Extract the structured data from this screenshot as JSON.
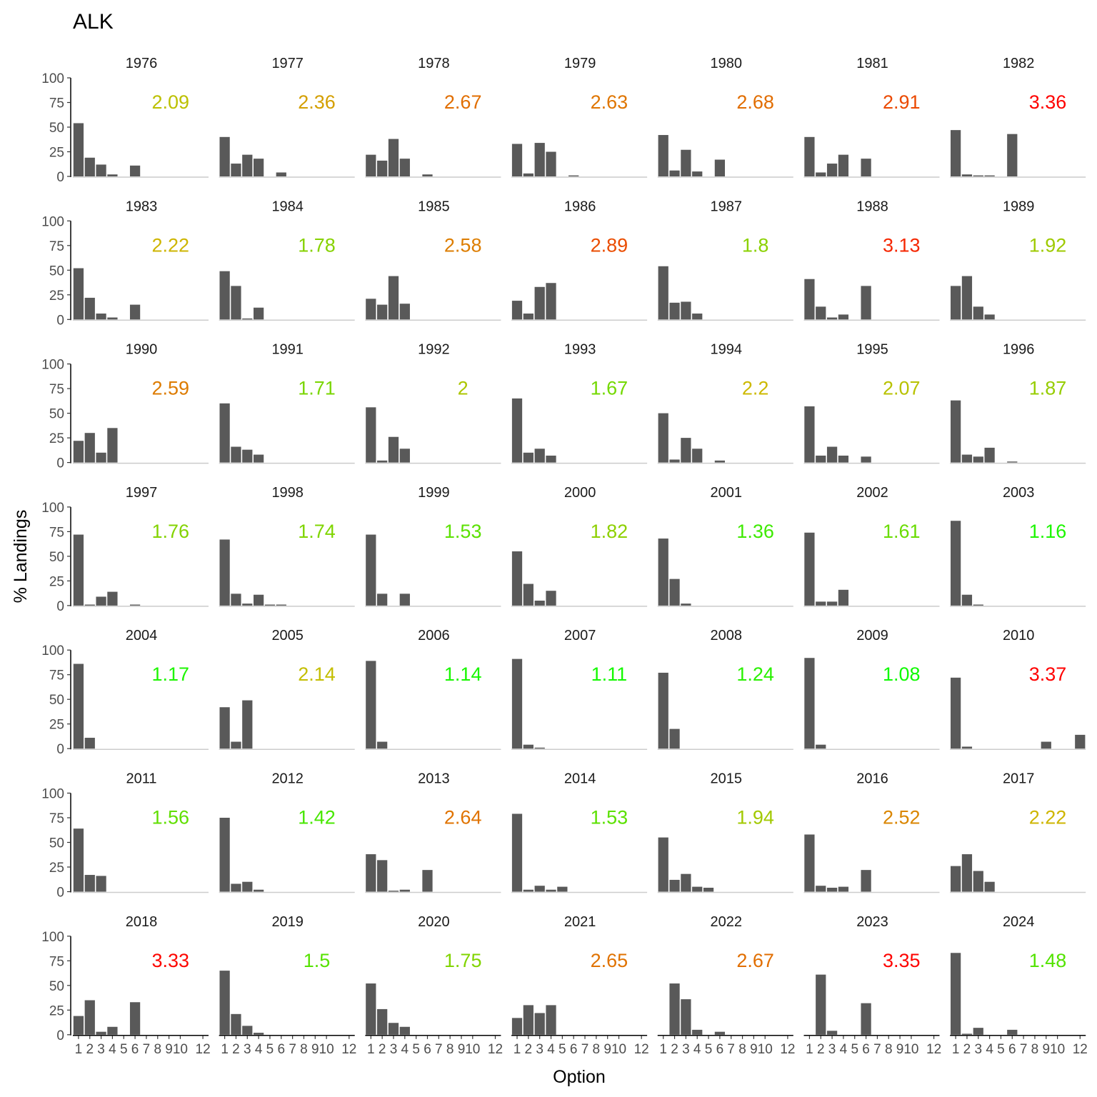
{
  "chart_data": {
    "type": "bar",
    "title": "ALK",
    "xlabel": "Option",
    "ylabel": "% Landings",
    "x_ticks": [
      "1",
      "2",
      "3",
      "4",
      "5",
      "6",
      "7",
      "8",
      "9",
      "10",
      "12"
    ],
    "categories": [
      "1",
      "2",
      "3",
      "4",
      "5",
      "6",
      "7",
      "8",
      "9",
      "10",
      "11",
      "12"
    ],
    "ylim": [
      0,
      100
    ],
    "y_ticks": [
      "0",
      "25",
      "50",
      "75",
      "100"
    ],
    "grid": false,
    "bar_color": "#595959",
    "color_scale": {
      "low": "#00ff00",
      "mid": "#ccbb00",
      "high": "#ff0000",
      "domain": [
        1,
        3.37
      ]
    },
    "panels": [
      {
        "year": "1976",
        "mean": "2.09",
        "values": [
          54,
          19,
          12,
          2,
          0,
          11,
          0,
          0,
          0,
          0,
          0,
          0
        ]
      },
      {
        "year": "1977",
        "mean": "2.36",
        "values": [
          40,
          13,
          22,
          18,
          0,
          4,
          0,
          0,
          0,
          0,
          0,
          0
        ]
      },
      {
        "year": "1978",
        "mean": "2.67",
        "values": [
          22,
          16,
          38,
          18,
          0,
          2,
          0,
          0,
          0,
          0,
          0,
          0
        ]
      },
      {
        "year": "1979",
        "mean": "2.63",
        "values": [
          33,
          3,
          34,
          25,
          0,
          1,
          0,
          0,
          0,
          0,
          0,
          0
        ]
      },
      {
        "year": "1980",
        "mean": "2.68",
        "values": [
          42,
          6,
          27,
          5,
          0,
          17,
          0,
          0,
          0,
          0,
          0,
          0
        ]
      },
      {
        "year": "1981",
        "mean": "2.91",
        "values": [
          40,
          4,
          13,
          22,
          0,
          18,
          0,
          0,
          0,
          0,
          0,
          0
        ]
      },
      {
        "year": "1982",
        "mean": "3.36",
        "values": [
          47,
          2,
          1,
          1,
          0,
          43,
          0,
          0,
          0,
          0,
          0,
          0
        ]
      },
      {
        "year": "1983",
        "mean": "2.22",
        "values": [
          52,
          22,
          6,
          2,
          0,
          15,
          0,
          0,
          0,
          0,
          0,
          0
        ]
      },
      {
        "year": "1984",
        "mean": "1.78",
        "values": [
          49,
          34,
          1,
          12,
          0,
          0,
          0,
          0,
          0,
          0,
          0,
          0
        ]
      },
      {
        "year": "1985",
        "mean": "2.58",
        "values": [
          21,
          15,
          44,
          16,
          0,
          0,
          0,
          0,
          0,
          0,
          0,
          0
        ]
      },
      {
        "year": "1986",
        "mean": "2.89",
        "values": [
          19,
          6,
          33,
          37,
          0,
          0,
          0,
          0,
          0,
          0,
          0,
          0
        ]
      },
      {
        "year": "1987",
        "mean": "1.8",
        "values": [
          54,
          17,
          18,
          6,
          0,
          0,
          0,
          0,
          0,
          0,
          0,
          0
        ]
      },
      {
        "year": "1988",
        "mean": "3.13",
        "values": [
          41,
          13,
          2,
          5,
          0,
          34,
          0,
          0,
          0,
          0,
          0,
          0
        ]
      },
      {
        "year": "1989",
        "mean": "1.92",
        "values": [
          34,
          44,
          13,
          5,
          0,
          0,
          0,
          0,
          0,
          0,
          0,
          0
        ]
      },
      {
        "year": "1990",
        "mean": "2.59",
        "values": [
          22,
          30,
          10,
          35,
          0,
          0,
          0,
          0,
          0,
          0,
          0,
          0
        ]
      },
      {
        "year": "1991",
        "mean": "1.71",
        "values": [
          60,
          16,
          13,
          8,
          0,
          0,
          0,
          0,
          0,
          0,
          0,
          0
        ]
      },
      {
        "year": "1992",
        "mean": "2",
        "values": [
          56,
          2,
          26,
          14,
          0,
          0,
          0,
          0,
          0,
          0,
          0,
          0
        ]
      },
      {
        "year": "1993",
        "mean": "1.67",
        "values": [
          65,
          10,
          14,
          7,
          0,
          0,
          0,
          0,
          0,
          0,
          0,
          0
        ]
      },
      {
        "year": "1994",
        "mean": "2.2",
        "values": [
          50,
          3,
          25,
          14,
          0,
          2,
          0,
          0,
          0,
          0,
          0,
          0
        ]
      },
      {
        "year": "1995",
        "mean": "2.07",
        "values": [
          57,
          7,
          16,
          7,
          0,
          6,
          0,
          0,
          0,
          0,
          0,
          0
        ]
      },
      {
        "year": "1996",
        "mean": "1.87",
        "values": [
          63,
          8,
          6,
          15,
          0,
          1,
          0,
          0,
          0,
          0,
          0,
          0
        ]
      },
      {
        "year": "1997",
        "mean": "1.76",
        "values": [
          72,
          1,
          9,
          14,
          0,
          1,
          0,
          0,
          0,
          0,
          0,
          0
        ]
      },
      {
        "year": "1998",
        "mean": "1.74",
        "values": [
          67,
          12,
          2,
          11,
          1,
          1,
          0,
          0,
          0,
          0,
          0,
          0
        ]
      },
      {
        "year": "1999",
        "mean": "1.53",
        "values": [
          72,
          12,
          0,
          12,
          0,
          0,
          0,
          0,
          0,
          0,
          0,
          0
        ]
      },
      {
        "year": "2000",
        "mean": "1.82",
        "values": [
          55,
          22,
          5,
          15,
          0,
          0,
          0,
          0,
          0,
          0,
          0,
          0
        ]
      },
      {
        "year": "2001",
        "mean": "1.36",
        "values": [
          68,
          27,
          2,
          0,
          0,
          0,
          0,
          0,
          0,
          0,
          0,
          0
        ]
      },
      {
        "year": "2002",
        "mean": "1.61",
        "values": [
          74,
          4,
          4,
          16,
          0,
          0,
          0,
          0,
          0,
          0,
          0,
          0
        ]
      },
      {
        "year": "2003",
        "mean": "1.16",
        "values": [
          86,
          11,
          1,
          0,
          0,
          0,
          0,
          0,
          0,
          0,
          0,
          0
        ]
      },
      {
        "year": "2004",
        "mean": "1.17",
        "values": [
          86,
          11,
          0,
          0,
          0,
          0,
          0,
          0,
          0,
          0,
          0,
          0
        ]
      },
      {
        "year": "2005",
        "mean": "2.14",
        "values": [
          42,
          7,
          49,
          0,
          0,
          0,
          0,
          0,
          0,
          0,
          0,
          0
        ]
      },
      {
        "year": "2006",
        "mean": "1.14",
        "values": [
          89,
          7,
          0,
          0,
          0,
          0,
          0,
          0,
          0,
          0,
          0,
          0
        ]
      },
      {
        "year": "2007",
        "mean": "1.11",
        "values": [
          91,
          4,
          1,
          0,
          0,
          0,
          0,
          0,
          0,
          0,
          0,
          0
        ]
      },
      {
        "year": "2008",
        "mean": "1.24",
        "values": [
          77,
          20,
          0,
          0,
          0,
          0,
          0,
          0,
          0,
          0,
          0,
          0
        ]
      },
      {
        "year": "2009",
        "mean": "1.08",
        "values": [
          92,
          4,
          0,
          0,
          0,
          0,
          0,
          0,
          0,
          0,
          0,
          0
        ]
      },
      {
        "year": "2010",
        "mean": "3.37",
        "values": [
          72,
          2,
          0,
          0,
          0,
          0,
          0,
          0,
          7,
          0,
          0,
          14
        ]
      },
      {
        "year": "2011",
        "mean": "1.56",
        "values": [
          64,
          17,
          16,
          0,
          0,
          0,
          0,
          0,
          0,
          0,
          0,
          0
        ]
      },
      {
        "year": "2012",
        "mean": "1.42",
        "values": [
          75,
          8,
          10,
          2,
          0,
          0,
          0,
          0,
          0,
          0,
          0,
          0
        ]
      },
      {
        "year": "2013",
        "mean": "2.64",
        "values": [
          38,
          32,
          1,
          2,
          0,
          22,
          0,
          0,
          0,
          0,
          0,
          0
        ]
      },
      {
        "year": "2014",
        "mean": "1.53",
        "values": [
          79,
          2,
          6,
          2,
          5,
          0,
          0,
          0,
          0,
          0,
          0,
          0
        ]
      },
      {
        "year": "2015",
        "mean": "1.94",
        "values": [
          55,
          12,
          18,
          5,
          4,
          0,
          0,
          0,
          0,
          0,
          0,
          0
        ]
      },
      {
        "year": "2016",
        "mean": "2.52",
        "values": [
          58,
          6,
          4,
          5,
          0,
          22,
          0,
          0,
          0,
          0,
          0,
          0
        ]
      },
      {
        "year": "2017",
        "mean": "2.22",
        "values": [
          26,
          38,
          21,
          10,
          0,
          0,
          0,
          0,
          0,
          0,
          0,
          0
        ]
      },
      {
        "year": "2018",
        "mean": "3.33",
        "values": [
          19,
          35,
          3,
          8,
          0,
          33,
          0,
          0,
          0,
          0,
          0,
          0
        ]
      },
      {
        "year": "2019",
        "mean": "1.5",
        "values": [
          65,
          21,
          9,
          2,
          0,
          0,
          0,
          0,
          0,
          0,
          0,
          0
        ]
      },
      {
        "year": "2020",
        "mean": "1.75",
        "values": [
          52,
          26,
          12,
          8,
          0,
          0,
          0,
          0,
          0,
          0,
          0,
          0
        ]
      },
      {
        "year": "2021",
        "mean": "2.65",
        "values": [
          17,
          30,
          22,
          30,
          0,
          0,
          0,
          0,
          0,
          0,
          0,
          0
        ]
      },
      {
        "year": "2022",
        "mean": "2.67",
        "values": [
          0,
          52,
          36,
          5,
          0,
          3,
          0,
          0,
          0,
          0,
          0,
          0
        ]
      },
      {
        "year": "2023",
        "mean": "3.35",
        "values": [
          0,
          61,
          4,
          0,
          0,
          32,
          0,
          0,
          0,
          0,
          0,
          0
        ]
      },
      {
        "year": "2024",
        "mean": "1.48",
        "values": [
          83,
          1,
          7,
          0,
          0,
          5,
          0,
          0,
          0,
          0,
          0,
          0
        ]
      }
    ]
  }
}
